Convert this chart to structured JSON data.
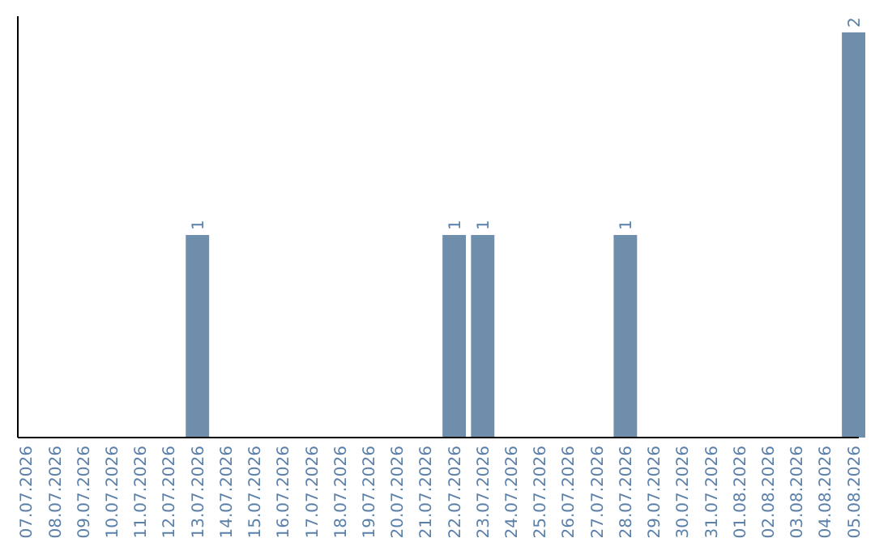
{
  "chart_data": {
    "type": "bar",
    "categories": [
      "07.07.2026",
      "08.07.2026",
      "09.07.2026",
      "10.07.2026",
      "11.07.2026",
      "12.07.2026",
      "13.07.2026",
      "14.07.2026",
      "15.07.2026",
      "16.07.2026",
      "17.07.2026",
      "18.07.2026",
      "19.07.2026",
      "20.07.2026",
      "21.07.2026",
      "22.07.2026",
      "23.07.2026",
      "24.07.2026",
      "25.07.2026",
      "26.07.2026",
      "27.07.2026",
      "28.07.2026",
      "29.07.2026",
      "30.07.2026",
      "31.07.2026",
      "01.08.2026",
      "02.08.2026",
      "03.08.2026",
      "04.08.2026",
      "05.08.2026"
    ],
    "values": [
      0,
      0,
      0,
      0,
      0,
      0,
      1,
      0,
      0,
      0,
      0,
      0,
      0,
      0,
      0,
      1,
      1,
      0,
      0,
      0,
      0,
      1,
      0,
      0,
      0,
      0,
      0,
      0,
      0,
      2
    ],
    "value_labels": [
      null,
      null,
      null,
      null,
      null,
      null,
      "1",
      null,
      null,
      null,
      null,
      null,
      null,
      null,
      null,
      "1",
      "1",
      null,
      null,
      null,
      null,
      "1",
      null,
      null,
      null,
      null,
      null,
      null,
      null,
      "2"
    ],
    "color": "#6e8eab",
    "tick_labels": "x"
  }
}
